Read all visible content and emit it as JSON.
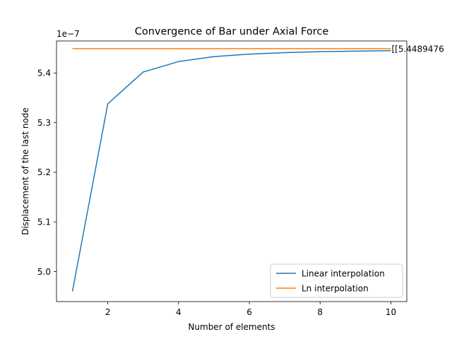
{
  "chart_data": {
    "type": "line",
    "title": "Convergence of Bar under Axial Force",
    "xlabel": "Number of elements",
    "ylabel": "Displacement of the last node",
    "y_offset_label": "1e−7",
    "xlim": [
      0.55,
      10.45
    ],
    "ylim": [
      4.9395,
      5.4645
    ],
    "xticks": [
      2,
      4,
      6,
      8,
      10
    ],
    "yticks": [
      5.0,
      5.1,
      5.2,
      5.3,
      5.4
    ],
    "ytick_labels": [
      "5.0",
      "5.1",
      "5.2",
      "5.3",
      "5.4"
    ],
    "grid": false,
    "legend_position": "lower-right",
    "series": [
      {
        "name": "Linear interpolation",
        "color": "#1f77b4",
        "x": [
          1,
          2,
          3,
          4,
          5,
          6,
          7,
          8,
          9,
          10
        ],
        "y": [
          4.96,
          5.338,
          5.402,
          5.423,
          5.433,
          5.438,
          5.441,
          5.443,
          5.444,
          5.445
        ]
      },
      {
        "name": "Ln interpolation",
        "color": "#ff7f0e",
        "x": [
          1,
          2,
          3,
          4,
          5,
          6,
          7,
          8,
          9,
          10
        ],
        "y": [
          5.449,
          5.449,
          5.449,
          5.449,
          5.449,
          5.449,
          5.449,
          5.449,
          5.449,
          5.449
        ]
      }
    ],
    "annotations": [
      {
        "text": "[[5.4489476",
        "x": 10,
        "y": 5.449
      }
    ]
  }
}
